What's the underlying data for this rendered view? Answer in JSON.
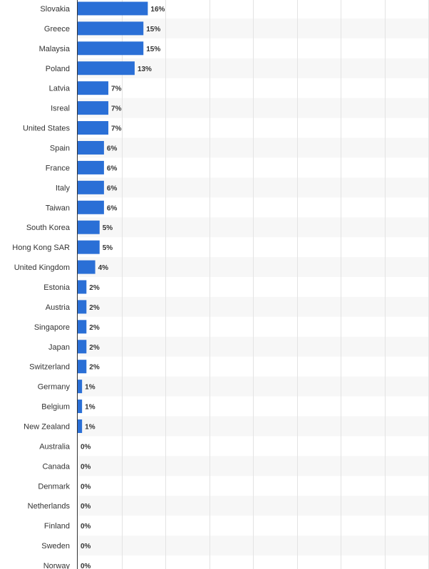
{
  "chart_data": {
    "type": "bar",
    "orientation": "horizontal",
    "categories": [
      "Slovakia",
      "Greece",
      "Malaysia",
      "Poland",
      "Latvia",
      "Isreal",
      "United States",
      "Spain",
      "France",
      "Italy",
      "Taiwan",
      "South Korea",
      "Hong Kong SAR",
      "United Kingdom",
      "Estonia",
      "Austria",
      "Singapore",
      "Japan",
      "Switzerland",
      "Germany",
      "Belgium",
      "New Zealand",
      "Australia",
      "Canada",
      "Denmark",
      "Netherlands",
      "Finland",
      "Sweden",
      "Norway"
    ],
    "values": [
      16,
      15,
      15,
      13,
      7,
      7,
      7,
      6,
      6,
      6,
      6,
      5,
      5,
      4,
      2,
      2,
      2,
      2,
      2,
      1,
      1,
      1,
      0,
      0,
      0,
      0,
      0,
      0,
      0
    ],
    "value_labels": [
      "16%",
      "15%",
      "15%",
      "13%",
      "7%",
      "7%",
      "7%",
      "6%",
      "6%",
      "6%",
      "6%",
      "5%",
      "5%",
      "4%",
      "2%",
      "2%",
      "2%",
      "2%",
      "2%",
      "1%",
      "1%",
      "1%",
      "0%",
      "0%",
      "0%",
      "0%",
      "0%",
      "0%",
      "0%"
    ],
    "xlim": [
      0,
      80
    ],
    "grid": true,
    "colors": {
      "bar": "#2a6fd6",
      "alt_row": "#f7f7f7",
      "grid": "#e3e3e3",
      "axis": "#333333",
      "text": "#333333"
    }
  }
}
